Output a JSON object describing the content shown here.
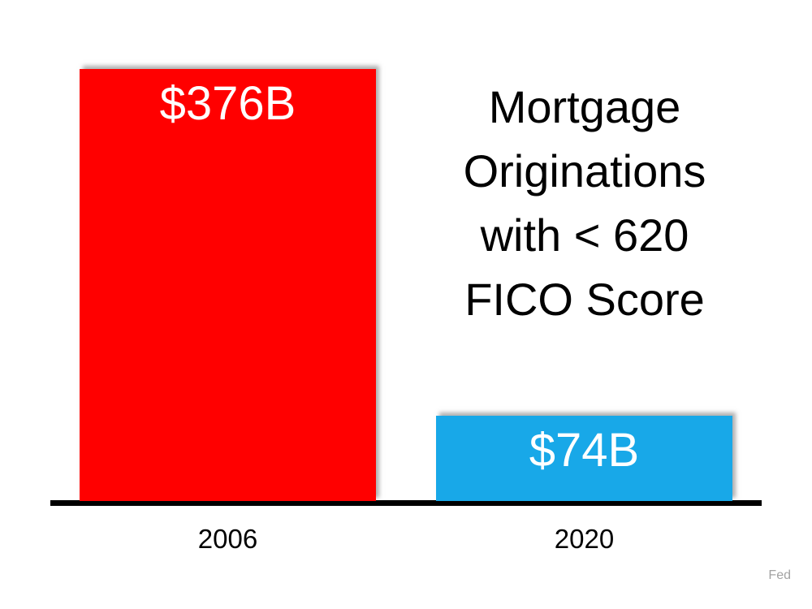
{
  "chart_data": {
    "type": "bar",
    "title": "Mortgage Originations with < 620 FICO Score",
    "title_lines": [
      "Mortgage",
      "Originations",
      "with < 620",
      "FICO Score"
    ],
    "categories": [
      "2006",
      "2020"
    ],
    "values": [
      376,
      74
    ],
    "value_labels": [
      "$376B",
      "$74B"
    ],
    "bar_colors": [
      "#ff0000",
      "#18a8e8"
    ],
    "source": "Fed",
    "ylim": [
      0,
      376
    ],
    "grid": false,
    "legend": false,
    "value_label_position": "inside-top",
    "colors": {
      "axis_line": "#000000",
      "value_label_text": "#ffffff",
      "title_text": "#000000",
      "source_text": "#a3a3a3",
      "background": "#ffffff"
    }
  }
}
